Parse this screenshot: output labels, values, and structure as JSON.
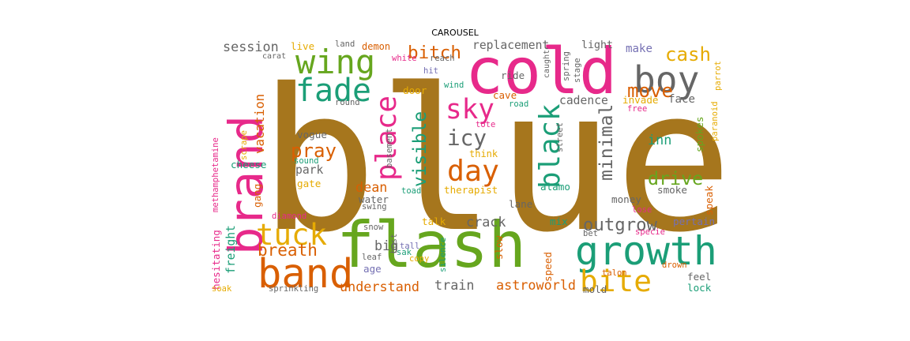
{
  "title": "CAROUSEL",
  "colors": {
    "brown": "#a6761d",
    "pink": "#e7298a",
    "green": "#66a61e",
    "orange": "#d95f02",
    "teal": "#1b9e77",
    "yellow": "#e6ab02",
    "gray": "#666666",
    "purple": "#7570b3"
  },
  "words": [
    {
      "text": "blue",
      "color": "brown"
    },
    {
      "text": "flash",
      "color": "green"
    },
    {
      "text": "cold",
      "color": "pink"
    },
    {
      "text": "brand",
      "color": "pink"
    },
    {
      "text": "growth",
      "color": "teal"
    },
    {
      "text": "band",
      "color": "orange"
    },
    {
      "text": "wing",
      "color": "green"
    },
    {
      "text": "boy",
      "color": "gray"
    },
    {
      "text": "bite",
      "color": "yellow"
    },
    {
      "text": "tuck",
      "color": "yellow"
    },
    {
      "text": "place",
      "color": "pink"
    },
    {
      "text": "black",
      "color": "teal"
    },
    {
      "text": "fade",
      "color": "teal"
    },
    {
      "text": "day",
      "color": "orange"
    },
    {
      "text": "sky",
      "color": "pink"
    },
    {
      "text": "cash",
      "color": "yellow"
    },
    {
      "text": "bitch",
      "color": "orange"
    },
    {
      "text": "visible",
      "color": "teal"
    },
    {
      "text": "icy",
      "color": "gray"
    },
    {
      "text": "move",
      "color": "orange"
    },
    {
      "text": "pray",
      "color": "orange"
    },
    {
      "text": "drive",
      "color": "green"
    },
    {
      "text": "outgrow",
      "color": "gray"
    },
    {
      "text": "minimal",
      "color": "gray"
    },
    {
      "text": "breath",
      "color": "orange"
    },
    {
      "text": "session",
      "color": "gray"
    },
    {
      "text": "astroworld",
      "color": "orange"
    },
    {
      "text": "understand",
      "color": "orange"
    },
    {
      "text": "train",
      "color": "gray"
    },
    {
      "text": "freight",
      "color": "teal"
    },
    {
      "text": "crack",
      "color": "gray"
    },
    {
      "text": "big",
      "color": "gray"
    },
    {
      "text": "vacation",
      "color": "orange"
    },
    {
      "text": "park",
      "color": "gray"
    },
    {
      "text": "inn",
      "color": "teal"
    },
    {
      "text": "dean",
      "color": "orange"
    },
    {
      "text": "replacement",
      "color": "gray"
    },
    {
      "text": "light",
      "color": "gray"
    },
    {
      "text": "make",
      "color": "purple"
    },
    {
      "text": "live",
      "color": "yellow"
    },
    {
      "text": "demon",
      "color": "orange"
    },
    {
      "text": "land",
      "color": "gray"
    },
    {
      "text": "carat",
      "color": "gray"
    },
    {
      "text": "white",
      "color": "pink"
    },
    {
      "text": "reach",
      "color": "gray"
    },
    {
      "text": "hit",
      "color": "purple"
    },
    {
      "text": "wind",
      "color": "teal"
    },
    {
      "text": "ride",
      "color": "gray"
    },
    {
      "text": "caught",
      "color": "gray"
    },
    {
      "text": "spring",
      "color": "gray"
    },
    {
      "text": "stage",
      "color": "gray"
    },
    {
      "text": "parrot",
      "color": "yellow"
    },
    {
      "text": "paranoid",
      "color": "yellow"
    },
    {
      "text": "spokes",
      "color": "green"
    },
    {
      "text": "face",
      "color": "gray"
    },
    {
      "text": "invade",
      "color": "yellow"
    },
    {
      "text": "cadence",
      "color": "gray"
    },
    {
      "text": "cave",
      "color": "orange"
    },
    {
      "text": "road",
      "color": "teal"
    },
    {
      "text": "free",
      "color": "pink"
    },
    {
      "text": "door",
      "color": "yellow"
    },
    {
      "text": "round",
      "color": "gray"
    },
    {
      "text": "vogue",
      "color": "gray"
    },
    {
      "text": "basement",
      "color": "gray"
    },
    {
      "text": "tote",
      "color": "pink"
    },
    {
      "text": "street",
      "color": "gray"
    },
    {
      "text": "think",
      "color": "yellow"
    },
    {
      "text": "methamphetamine",
      "color": "pink"
    },
    {
      "text": "scrape",
      "color": "yellow"
    },
    {
      "text": "sound",
      "color": "teal"
    },
    {
      "text": "cheese",
      "color": "teal"
    },
    {
      "text": "gang",
      "color": "orange"
    },
    {
      "text": "gate",
      "color": "yellow"
    },
    {
      "text": "swing",
      "color": "gray"
    },
    {
      "text": "water",
      "color": "gray"
    },
    {
      "text": "toad",
      "color": "teal"
    },
    {
      "text": "therapist",
      "color": "yellow"
    },
    {
      "text": "alamo",
      "color": "teal"
    },
    {
      "text": "money",
      "color": "gray"
    },
    {
      "text": "smoke",
      "color": "gray"
    },
    {
      "text": "speak",
      "color": "orange"
    },
    {
      "text": "lane",
      "color": "gray"
    },
    {
      "text": "diamond",
      "color": "pink"
    },
    {
      "text": "hesitating",
      "color": "pink"
    },
    {
      "text": "snow",
      "color": "gray"
    },
    {
      "text": "talk",
      "color": "yellow"
    },
    {
      "text": "bust",
      "color": "gray"
    },
    {
      "text": "tall",
      "color": "purple"
    },
    {
      "text": "sak",
      "color": "teal"
    },
    {
      "text": "leaf",
      "color": "gray"
    },
    {
      "text": "copy",
      "color": "yellow"
    },
    {
      "text": "age",
      "color": "purple"
    },
    {
      "text": "silence",
      "color": "teal"
    },
    {
      "text": "slow",
      "color": "orange"
    },
    {
      "text": "mix",
      "color": "teal"
    },
    {
      "text": "speed",
      "color": "orange"
    },
    {
      "text": "lose",
      "color": "pink"
    },
    {
      "text": "bet",
      "color": "gray"
    },
    {
      "text": "specie",
      "color": "pink"
    },
    {
      "text": "pertain",
      "color": "purple"
    },
    {
      "text": "drown",
      "color": "orange"
    },
    {
      "text": "feel",
      "color": "gray"
    },
    {
      "text": "lock",
      "color": "teal"
    },
    {
      "text": "talon",
      "color": "orange"
    },
    {
      "text": "mold",
      "color": "gray"
    },
    {
      "text": "soak",
      "color": "yellow"
    },
    {
      "text": "sprinkling",
      "color": "gray"
    }
  ]
}
